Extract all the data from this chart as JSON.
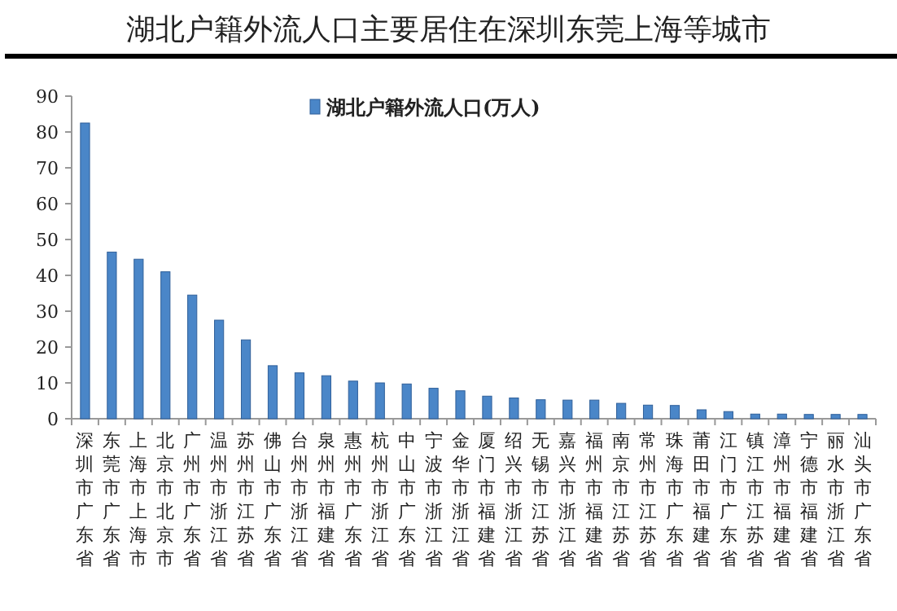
{
  "chart_data": {
    "type": "bar",
    "title": "湖北户籍外流人口主要居住在深圳东莞上海等城市",
    "categories": [
      "深圳市广东省",
      "东莞市广东省",
      "上海市上海市",
      "北京市北京市",
      "广州市广东省",
      "温州市浙江省",
      "苏州市江苏省",
      "佛山市广东省",
      "台州市浙江省",
      "泉州市福建省",
      "惠州市广东省",
      "杭州市浙江省",
      "中山市广东省",
      "宁波市浙江省",
      "金华市浙江省",
      "厦门市福建省",
      "绍兴市浙江省",
      "无锡市江苏省",
      "嘉兴市浙江省",
      "福州市福建省",
      "南京市江苏省",
      "常州市江苏省",
      "珠海市广东省",
      "莆田市福建省",
      "江门市广东省",
      "镇江市江苏省",
      "漳州市福建省",
      "宁德市福建省",
      "丽水市浙江省",
      "汕头市广东省"
    ],
    "series": [
      {
        "name": "湖北户籍外流人口(万人)",
        "color": "#4a86c8",
        "values": [
          82.5,
          46.5,
          44.5,
          41,
          34.5,
          27.5,
          22,
          14.8,
          12.8,
          12,
          10.5,
          10,
          9.7,
          8.5,
          7.8,
          6.3,
          5.8,
          5.3,
          5.2,
          5.2,
          4.3,
          3.8,
          3.7,
          2.5,
          2.0,
          1.3,
          1.3,
          1.2,
          1.2,
          1.2
        ]
      }
    ],
    "ylim": [
      0,
      90
    ],
    "yticks": [
      0,
      10,
      20,
      30,
      40,
      50,
      60,
      70,
      80,
      90
    ],
    "legend": "top",
    "grid": false
  }
}
